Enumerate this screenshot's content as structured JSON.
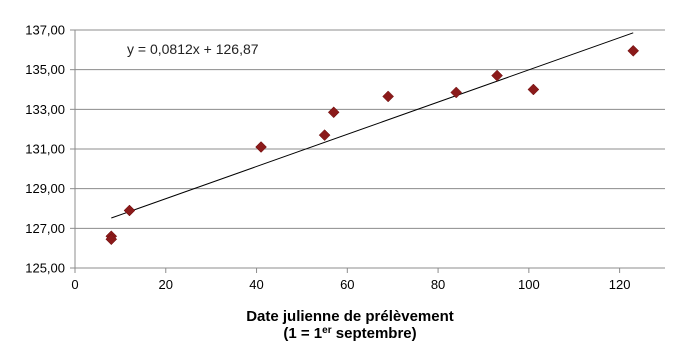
{
  "chart_data": {
    "type": "scatter",
    "title": "",
    "xlabel": "Date julienne de prélèvement",
    "xlabel_line2_prefix": "(1 = 1",
    "xlabel_line2_sup": "er",
    "xlabel_line2_suffix": " septembre)",
    "ylabel": "",
    "xlim": [
      0,
      130
    ],
    "ylim": [
      125,
      137
    ],
    "xticks": [
      0,
      20,
      40,
      60,
      80,
      100,
      120
    ],
    "yticks": [
      125,
      127,
      129,
      131,
      133,
      135,
      137
    ],
    "xtick_labels": [
      "0",
      "20",
      "40",
      "60",
      "80",
      "100",
      "120"
    ],
    "ytick_labels": [
      "125,00",
      "127,00",
      "129,00",
      "131,00",
      "133,00",
      "135,00",
      "137,00"
    ],
    "grid": "horizontal",
    "marker_color": "#8B1A1A",
    "trendline": {
      "slope": 0.0812,
      "intercept": 126.87,
      "x_range": [
        8,
        123
      ],
      "equation_label": "y = 0,0812x + 126,87"
    },
    "points": [
      {
        "x": 8,
        "y": 126.6
      },
      {
        "x": 8,
        "y": 126.45
      },
      {
        "x": 12,
        "y": 127.9
      },
      {
        "x": 41,
        "y": 131.1
      },
      {
        "x": 55,
        "y": 131.7
      },
      {
        "x": 57,
        "y": 132.85
      },
      {
        "x": 69,
        "y": 133.65
      },
      {
        "x": 84,
        "y": 133.85
      },
      {
        "x": 93,
        "y": 134.7
      },
      {
        "x": 101,
        "y": 134.0
      },
      {
        "x": 123,
        "y": 135.95
      }
    ]
  }
}
